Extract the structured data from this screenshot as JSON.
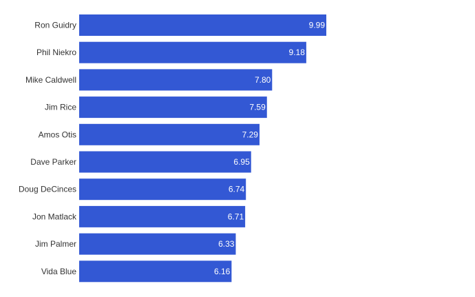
{
  "chart_data": {
    "type": "bar",
    "orientation": "horizontal",
    "title": "",
    "xlabel": "",
    "ylabel": "",
    "categories": [
      "Ron Guidry",
      "Phil Niekro",
      "Mike Caldwell",
      "Jim Rice",
      "Amos Otis",
      "Dave Parker",
      "Doug DeCinces",
      "Jon Matlack",
      "Jim Palmer",
      "Vida Blue"
    ],
    "values": [
      9.99,
      9.18,
      7.8,
      7.59,
      7.29,
      6.95,
      6.74,
      6.71,
      6.33,
      6.16
    ],
    "value_labels": [
      "9.99",
      "9.18",
      "7.80",
      "7.59",
      "7.29",
      "6.95",
      "6.74",
      "6.71",
      "6.33",
      "6.16"
    ],
    "xlim": [
      0,
      9.99
    ],
    "grid": false,
    "legend": "none",
    "bar_color": "#3358d4"
  }
}
